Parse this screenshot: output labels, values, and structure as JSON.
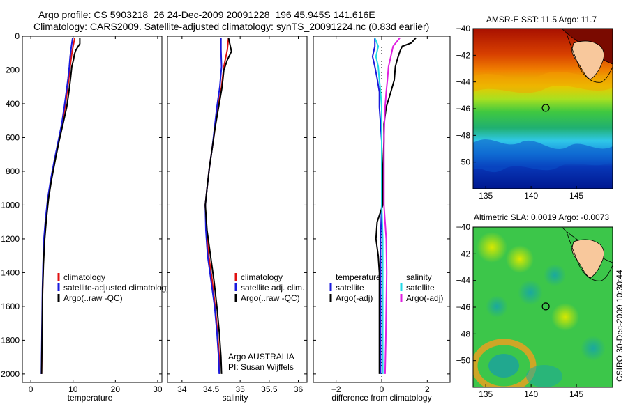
{
  "header": {
    "line1": "Argo profile: CS 5903218_26 24-Dec-2009 20091228_196 45.945S 141.616E",
    "line2": "Climatology: CARS2009. Satellite-adjusted climatology: synTS_20091224.nc (0.83d earlier)"
  },
  "footer": {
    "stamp": "CSIRO 30-Dec-2009 10:30:44"
  },
  "colors": {
    "climatology": "#e01010",
    "satellite": "#1a1adc",
    "argo": "#000000",
    "salinity_satellite": "#22d8e6",
    "salinity_argo": "#e020e0",
    "land": "#f8c89c"
  },
  "chart_data": [
    {
      "id": "temperature",
      "type": "line",
      "xlabel": "temperature",
      "ylabel": "",
      "xlim": [
        -2,
        31
      ],
      "ylim": [
        2050,
        0
      ],
      "xticks": [
        0,
        10,
        20,
        30
      ],
      "yticks": [
        0,
        200,
        400,
        600,
        800,
        1000,
        1200,
        1400,
        1600,
        1800,
        2000
      ],
      "legend": {
        "position": "lower-right",
        "entries": [
          "climatology",
          "satellite-adjusted climatology",
          "Argo(..raw -QC)"
        ]
      },
      "series": [
        {
          "name": "climatology",
          "color": "#e01010",
          "points": [
            [
              10.4,
              10
            ],
            [
              10.0,
              60
            ],
            [
              9.6,
              120
            ],
            [
              9.3,
              180
            ],
            [
              9.0,
              250
            ],
            [
              8.6,
              330
            ],
            [
              8.1,
              420
            ],
            [
              7.4,
              520
            ],
            [
              6.6,
              620
            ],
            [
              5.7,
              730
            ],
            [
              4.8,
              850
            ],
            [
              4.1,
              960
            ],
            [
              3.6,
              1080
            ],
            [
              3.2,
              1200
            ],
            [
              2.95,
              1350
            ],
            [
              2.8,
              1500
            ],
            [
              2.7,
              1700
            ],
            [
              2.6,
              1900
            ],
            [
              2.55,
              2000
            ]
          ]
        },
        {
          "name": "satellite-adjusted climatology",
          "color": "#1a1adc",
          "points": [
            [
              9.9,
              10
            ],
            [
              9.6,
              60
            ],
            [
              9.3,
              120
            ],
            [
              9.1,
              180
            ],
            [
              8.8,
              250
            ],
            [
              8.4,
              330
            ],
            [
              7.9,
              420
            ],
            [
              7.3,
              520
            ],
            [
              6.5,
              620
            ],
            [
              5.6,
              730
            ],
            [
              4.7,
              850
            ],
            [
              4.0,
              960
            ],
            [
              3.5,
              1080
            ],
            [
              3.1,
              1200
            ],
            [
              2.9,
              1350
            ],
            [
              2.75,
              1500
            ],
            [
              2.65,
              1700
            ],
            [
              2.55,
              1900
            ],
            [
              2.5,
              2000
            ]
          ]
        },
        {
          "name": "Argo(..raw -QC)",
          "color": "#000000",
          "points": [
            [
              11.6,
              10
            ],
            [
              11.6,
              45
            ],
            [
              11.2,
              60
            ],
            [
              10.6,
              85
            ],
            [
              10.3,
              110
            ],
            [
              10.1,
              140
            ],
            [
              9.7,
              180
            ],
            [
              9.4,
              250
            ],
            [
              9.0,
              330
            ],
            [
              8.5,
              420
            ],
            [
              7.6,
              520
            ],
            [
              6.7,
              620
            ],
            [
              5.8,
              730
            ],
            [
              4.9,
              850
            ],
            [
              4.2,
              960
            ],
            [
              3.7,
              1080
            ],
            [
              3.3,
              1200
            ],
            [
              3.0,
              1350
            ],
            [
              2.8,
              1500
            ],
            [
              2.7,
              1700
            ],
            [
              2.6,
              1900
            ],
            [
              2.55,
              2000
            ]
          ]
        }
      ]
    },
    {
      "id": "salinity",
      "type": "line",
      "xlabel": "salinity",
      "ylabel": "",
      "xlim": [
        33.75,
        36.15
      ],
      "ylim": [
        2050,
        0
      ],
      "xticks": [
        34,
        34.5,
        35,
        35.5,
        36
      ],
      "xticklabels": [
        "34",
        "34.5",
        "35",
        "35.5",
        "36"
      ],
      "yticks": [
        0,
        200,
        400,
        600,
        800,
        1000,
        1200,
        1400,
        1600,
        1800,
        2000
      ],
      "legend": {
        "position": "lower-right",
        "entries": [
          "climatology",
          "satellite adj. clim.",
          "Argo(..raw -QC)"
        ]
      },
      "annotation": [
        "Argo AUSTRALIA",
        "PI: Susan Wijffels"
      ],
      "series": [
        {
          "name": "climatology",
          "color": "#e01010",
          "points": [
            [
              34.8,
              10
            ],
            [
              34.78,
              80
            ],
            [
              34.72,
              180
            ],
            [
              34.68,
              300
            ],
            [
              34.62,
              420
            ],
            [
              34.57,
              540
            ],
            [
              34.52,
              660
            ],
            [
              34.47,
              780
            ],
            [
              34.43,
              900
            ],
            [
              34.4,
              1000
            ],
            [
              34.42,
              1150
            ],
            [
              34.46,
              1300
            ],
            [
              34.52,
              1450
            ],
            [
              34.57,
              1600
            ],
            [
              34.61,
              1750
            ],
            [
              34.64,
              1900
            ],
            [
              34.65,
              2000
            ]
          ]
        },
        {
          "name": "satellite adj. clim.",
          "color": "#1a1adc",
          "points": [
            [
              34.67,
              10
            ],
            [
              34.67,
              80
            ],
            [
              34.68,
              180
            ],
            [
              34.65,
              300
            ],
            [
              34.6,
              420
            ],
            [
              34.56,
              540
            ],
            [
              34.52,
              660
            ],
            [
              34.47,
              780
            ],
            [
              34.43,
              900
            ],
            [
              34.4,
              1000
            ],
            [
              34.41,
              1150
            ],
            [
              34.44,
              1300
            ],
            [
              34.5,
              1450
            ],
            [
              34.56,
              1600
            ],
            [
              34.6,
              1750
            ],
            [
              34.63,
              1900
            ],
            [
              34.64,
              2000
            ]
          ]
        },
        {
          "name": "Argo(..raw -QC)",
          "color": "#000000",
          "points": [
            [
              34.8,
              10
            ],
            [
              34.85,
              90
            ],
            [
              34.78,
              140
            ],
            [
              34.72,
              200
            ],
            [
              34.69,
              300
            ],
            [
              34.63,
              420
            ],
            [
              34.57,
              540
            ],
            [
              34.52,
              660
            ],
            [
              34.47,
              780
            ],
            [
              34.43,
              900
            ],
            [
              34.4,
              1000
            ],
            [
              34.43,
              1150
            ],
            [
              34.49,
              1300
            ],
            [
              34.55,
              1450
            ],
            [
              34.6,
              1600
            ],
            [
              34.64,
              1750
            ],
            [
              34.67,
              1900
            ],
            [
              34.68,
              2000
            ]
          ]
        }
      ]
    },
    {
      "id": "difference",
      "type": "line",
      "xlabel": "difference from climatology",
      "ylabel": "",
      "xlim": [
        -3,
        3
      ],
      "ylim": [
        2050,
        0
      ],
      "xticks": [
        -2,
        0,
        2
      ],
      "xticklabels": [
        "−2",
        "0",
        "2"
      ],
      "yticks": [
        0,
        200,
        400,
        600,
        800,
        1000,
        1200,
        1400,
        1600,
        1800,
        2000
      ],
      "legend": {
        "position": "lower-center",
        "columns": [
          {
            "title": "temperature",
            "entries": [
              "satellite",
              "Argo(-adj)"
            ]
          },
          {
            "title": "salinity",
            "entries": [
              "satellite",
              "Argo(-adj)"
            ]
          }
        ]
      },
      "series": [
        {
          "name": "temperature satellite",
          "color": "#1a1adc",
          "points": [
            [
              -0.3,
              10
            ],
            [
              -0.3,
              60
            ],
            [
              -0.4,
              120
            ],
            [
              -0.3,
              180
            ],
            [
              -0.2,
              250
            ],
            [
              -0.1,
              330
            ],
            [
              -0.1,
              420
            ],
            [
              -0.05,
              520
            ],
            [
              0,
              620
            ],
            [
              0,
              800
            ],
            [
              0,
              1000
            ],
            [
              -0.05,
              1200
            ],
            [
              -0.05,
              1400
            ],
            [
              -0.05,
              1600
            ],
            [
              -0.05,
              1800
            ],
            [
              -0.05,
              2000
            ]
          ]
        },
        {
          "name": "temperature Argo(-adj)",
          "color": "#000000",
          "points": [
            [
              1.5,
              10
            ],
            [
              1.3,
              40
            ],
            [
              0.9,
              60
            ],
            [
              0.8,
              90
            ],
            [
              0.7,
              130
            ],
            [
              0.6,
              180
            ],
            [
              0.55,
              260
            ],
            [
              0.4,
              330
            ],
            [
              0.2,
              420
            ],
            [
              0.1,
              520
            ],
            [
              0.1,
              620
            ],
            [
              0.05,
              800
            ],
            [
              0.05,
              1000
            ],
            [
              -0.2,
              1100
            ],
            [
              -0.25,
              1200
            ],
            [
              -0.15,
              1300
            ],
            [
              -0.1,
              1400
            ],
            [
              -0.1,
              1600
            ],
            [
              -0.1,
              1800
            ],
            [
              -0.1,
              2000
            ]
          ]
        },
        {
          "name": "salinity satellite",
          "color": "#22d8e6",
          "points": [
            [
              -0.3,
              10
            ],
            [
              -0.15,
              60
            ],
            [
              -0.25,
              120
            ],
            [
              -0.15,
              180
            ],
            [
              -0.1,
              260
            ],
            [
              -0.05,
              330
            ],
            [
              0,
              420
            ],
            [
              0,
              620
            ],
            [
              0,
              800
            ],
            [
              0,
              1000
            ],
            [
              0.05,
              1200
            ],
            [
              0.05,
              1400
            ],
            [
              0.05,
              1600
            ],
            [
              0.05,
              1800
            ],
            [
              0.05,
              2000
            ]
          ]
        },
        {
          "name": "salinity Argo(-adj)",
          "color": "#e020e0",
          "points": [
            [
              0.8,
              10
            ],
            [
              0.5,
              60
            ],
            [
              0.4,
              120
            ],
            [
              0.3,
              180
            ],
            [
              0.25,
              260
            ],
            [
              0.2,
              330
            ],
            [
              0.15,
              420
            ],
            [
              0.12,
              520
            ],
            [
              0.1,
              620
            ],
            [
              0.1,
              800
            ],
            [
              0.1,
              1000
            ],
            [
              0.15,
              1100
            ],
            [
              0.2,
              1200
            ],
            [
              0.22,
              1400
            ],
            [
              0.2,
              1600
            ],
            [
              0.18,
              1800
            ],
            [
              0.15,
              2000
            ]
          ]
        }
      ]
    },
    {
      "id": "sst_map",
      "type": "heatmap",
      "title": "AMSR-E SST: 11.5 Argo: 11.7",
      "xlim": [
        133.6,
        149
      ],
      "ylim": [
        -52,
        -40
      ],
      "xticks": [
        135,
        140,
        145
      ],
      "yticks": [
        -40,
        -42,
        -44,
        -46,
        -48,
        -50
      ],
      "marker": {
        "lon": 141.616,
        "lat": -45.945
      },
      "field": "sst"
    },
    {
      "id": "sla_map",
      "type": "heatmap",
      "title": "Altimetric SLA: 0.0019 Argo: -0.0073",
      "xlim": [
        133.6,
        149
      ],
      "ylim": [
        -52,
        -40
      ],
      "xticks": [
        135,
        140,
        145
      ],
      "yticks": [
        -40,
        -42,
        -44,
        -46,
        -48,
        -50
      ],
      "marker": {
        "lon": 141.616,
        "lat": -45.945
      },
      "field": "sla"
    }
  ]
}
